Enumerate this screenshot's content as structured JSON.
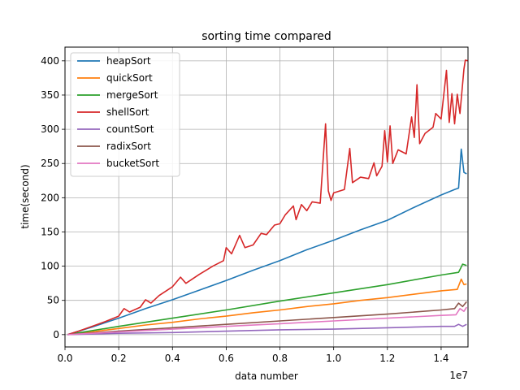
{
  "chart_data": {
    "type": "line",
    "title": "sorting time compared",
    "xlabel": "data number",
    "ylabel": "time(second)",
    "x_offset_label": "1e7",
    "xlim": [
      0,
      15000000
    ],
    "ylim": [
      -18,
      420
    ],
    "x_ticks": [
      0,
      2000000,
      4000000,
      6000000,
      8000000,
      10000000,
      12000000,
      14000000
    ],
    "x_tick_labels": [
      "0.0",
      "0.2",
      "0.4",
      "0.6",
      "0.8",
      "1.0",
      "1.2",
      "1.4"
    ],
    "y_ticks": [
      0,
      50,
      100,
      150,
      200,
      250,
      300,
      350,
      400
    ],
    "y_tick_labels": [
      "0",
      "50",
      "100",
      "150",
      "200",
      "250",
      "300",
      "350",
      "400"
    ],
    "grid": true,
    "legend_position": "top-left",
    "series": [
      {
        "name": "heapSort",
        "color": "#1f77b4",
        "points": [
          [
            100000,
            0
          ],
          [
            1000000,
            11
          ],
          [
            2000000,
            24
          ],
          [
            3000000,
            38
          ],
          [
            4000000,
            51
          ],
          [
            5000000,
            65
          ],
          [
            6000000,
            79
          ],
          [
            7000000,
            94
          ],
          [
            8000000,
            108
          ],
          [
            9000000,
            124
          ],
          [
            10000000,
            138
          ],
          [
            11000000,
            153
          ],
          [
            12000000,
            167
          ],
          [
            13000000,
            186
          ],
          [
            14000000,
            204
          ],
          [
            14500000,
            212
          ],
          [
            14650000,
            214
          ],
          [
            14750000,
            271
          ],
          [
            14850000,
            237
          ],
          [
            14950000,
            235
          ]
        ]
      },
      {
        "name": "quickSort",
        "color": "#ff7f0e",
        "points": [
          [
            100000,
            0
          ],
          [
            1000000,
            4
          ],
          [
            2000000,
            9
          ],
          [
            3000000,
            14
          ],
          [
            4000000,
            18
          ],
          [
            5000000,
            23
          ],
          [
            6000000,
            27
          ],
          [
            7000000,
            32
          ],
          [
            8000000,
            36
          ],
          [
            9000000,
            41
          ],
          [
            10000000,
            45
          ],
          [
            11000000,
            50
          ],
          [
            12000000,
            54
          ],
          [
            13000000,
            59
          ],
          [
            14000000,
            64
          ],
          [
            14600000,
            66
          ],
          [
            14750000,
            81
          ],
          [
            14850000,
            73
          ],
          [
            14950000,
            74
          ]
        ]
      },
      {
        "name": "mergeSort",
        "color": "#2ca02c",
        "points": [
          [
            100000,
            0
          ],
          [
            2000000,
            12
          ],
          [
            4000000,
            24
          ],
          [
            6000000,
            36
          ],
          [
            8000000,
            49
          ],
          [
            10000000,
            61
          ],
          [
            12000000,
            73
          ],
          [
            14000000,
            87
          ],
          [
            14650000,
            91
          ],
          [
            14800000,
            103
          ],
          [
            14950000,
            101
          ]
        ]
      },
      {
        "name": "shellSort",
        "color": "#d62728",
        "points": [
          [
            100000,
            0
          ],
          [
            500000,
            5
          ],
          [
            1000000,
            12
          ],
          [
            1500000,
            19
          ],
          [
            2000000,
            27
          ],
          [
            2200000,
            38
          ],
          [
            2400000,
            33
          ],
          [
            2800000,
            40
          ],
          [
            3000000,
            51
          ],
          [
            3200000,
            46
          ],
          [
            3500000,
            57
          ],
          [
            4000000,
            70
          ],
          [
            4300000,
            84
          ],
          [
            4500000,
            75
          ],
          [
            5000000,
            88
          ],
          [
            5500000,
            100
          ],
          [
            5900000,
            108
          ],
          [
            6000000,
            127
          ],
          [
            6200000,
            118
          ],
          [
            6500000,
            145
          ],
          [
            6700000,
            127
          ],
          [
            7000000,
            131
          ],
          [
            7300000,
            148
          ],
          [
            7500000,
            146
          ],
          [
            7800000,
            160
          ],
          [
            8000000,
            162
          ],
          [
            8200000,
            175
          ],
          [
            8500000,
            188
          ],
          [
            8600000,
            168
          ],
          [
            8800000,
            190
          ],
          [
            9000000,
            181
          ],
          [
            9200000,
            194
          ],
          [
            9500000,
            192
          ],
          [
            9700000,
            308
          ],
          [
            9800000,
            210
          ],
          [
            9900000,
            196
          ],
          [
            10000000,
            207
          ],
          [
            10400000,
            212
          ],
          [
            10600000,
            272
          ],
          [
            10700000,
            222
          ],
          [
            11000000,
            230
          ],
          [
            11300000,
            228
          ],
          [
            11500000,
            251
          ],
          [
            11600000,
            232
          ],
          [
            11800000,
            246
          ],
          [
            11900000,
            298
          ],
          [
            12000000,
            252
          ],
          [
            12100000,
            305
          ],
          [
            12200000,
            250
          ],
          [
            12400000,
            270
          ],
          [
            12700000,
            264
          ],
          [
            12900000,
            318
          ],
          [
            13000000,
            288
          ],
          [
            13100000,
            365
          ],
          [
            13200000,
            279
          ],
          [
            13400000,
            294
          ],
          [
            13700000,
            303
          ],
          [
            13800000,
            323
          ],
          [
            14000000,
            315
          ],
          [
            14200000,
            386
          ],
          [
            14300000,
            310
          ],
          [
            14400000,
            352
          ],
          [
            14500000,
            308
          ],
          [
            14600000,
            351
          ],
          [
            14700000,
            323
          ],
          [
            14850000,
            388
          ],
          [
            14900000,
            401
          ],
          [
            15000000,
            400
          ]
        ]
      },
      {
        "name": "countSort",
        "color": "#9467bd",
        "points": [
          [
            100000,
            0
          ],
          [
            2000000,
            2
          ],
          [
            4000000,
            3
          ],
          [
            6000000,
            5
          ],
          [
            8000000,
            7
          ],
          [
            10000000,
            8
          ],
          [
            12000000,
            10
          ],
          [
            14000000,
            12
          ],
          [
            14500000,
            12
          ],
          [
            14650000,
            15
          ],
          [
            14800000,
            12
          ],
          [
            14950000,
            15
          ]
        ]
      },
      {
        "name": "radixSort",
        "color": "#8c564b",
        "points": [
          [
            100000,
            0
          ],
          [
            2000000,
            5
          ],
          [
            4000000,
            10
          ],
          [
            6000000,
            15
          ],
          [
            8000000,
            20
          ],
          [
            10000000,
            25
          ],
          [
            12000000,
            30
          ],
          [
            14000000,
            36
          ],
          [
            14500000,
            38
          ],
          [
            14650000,
            46
          ],
          [
            14800000,
            41
          ],
          [
            14950000,
            48
          ]
        ]
      },
      {
        "name": "bucketSort",
        "color": "#e377c2",
        "points": [
          [
            100000,
            0
          ],
          [
            2000000,
            4
          ],
          [
            4000000,
            8
          ],
          [
            6000000,
            12
          ],
          [
            8000000,
            16
          ],
          [
            10000000,
            20
          ],
          [
            12000000,
            24
          ],
          [
            14000000,
            28
          ],
          [
            14550000,
            29
          ],
          [
            14700000,
            38
          ],
          [
            14850000,
            34
          ],
          [
            14950000,
            40
          ]
        ]
      }
    ]
  }
}
